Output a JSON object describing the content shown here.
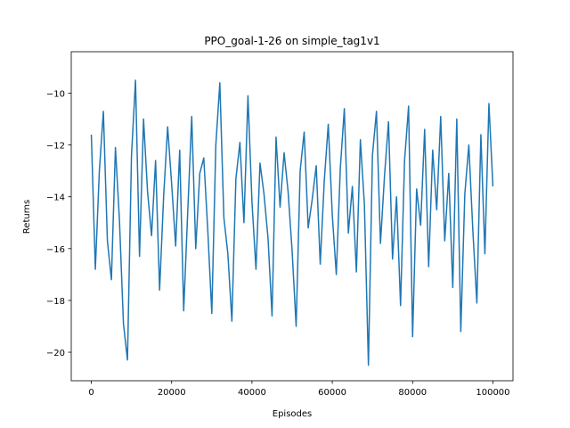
{
  "chart_data": {
    "type": "line",
    "title": "PPO_goal-1-26 on simple_tag1v1",
    "xlabel": "Episodes",
    "ylabel": "Returns",
    "color": "#1f77b4",
    "x": [
      0,
      1000,
      2000,
      3000,
      4000,
      5000,
      6000,
      7000,
      8000,
      9000,
      10000,
      11000,
      12000,
      13000,
      14000,
      15000,
      16000,
      17000,
      18000,
      19000,
      20000,
      21000,
      22000,
      23000,
      24000,
      25000,
      26000,
      27000,
      28000,
      29000,
      30000,
      31000,
      32000,
      33000,
      34000,
      35000,
      36000,
      37000,
      38000,
      39000,
      40000,
      41000,
      42000,
      43000,
      44000,
      45000,
      46000,
      47000,
      48000,
      49000,
      50000,
      51000,
      52000,
      53000,
      54000,
      55000,
      56000,
      57000,
      58000,
      59000,
      60000,
      61000,
      62000,
      63000,
      64000,
      65000,
      66000,
      67000,
      68000,
      69000,
      70000,
      71000,
      72000,
      73000,
      74000,
      75000,
      76000,
      77000,
      78000,
      79000,
      80000,
      81000,
      82000,
      83000,
      84000,
      85000,
      86000,
      87000,
      88000,
      89000,
      90000,
      91000,
      92000,
      93000,
      94000,
      95000,
      96000,
      97000,
      98000,
      99000,
      100000
    ],
    "values": [
      -11.6,
      -16.8,
      -13.0,
      -10.7,
      -15.7,
      -17.2,
      -12.1,
      -14.9,
      -18.9,
      -20.3,
      -12.4,
      -9.5,
      -16.3,
      -11.0,
      -13.8,
      -15.5,
      -12.6,
      -17.6,
      -14.0,
      -11.3,
      -13.5,
      -15.9,
      -12.2,
      -18.4,
      -14.6,
      -10.9,
      -16.0,
      -13.1,
      -12.5,
      -15.3,
      -18.5,
      -12.0,
      -9.6,
      -14.8,
      -16.2,
      -18.8,
      -13.3,
      -11.9,
      -15.0,
      -10.1,
      -14.2,
      -16.8,
      -12.7,
      -13.9,
      -15.6,
      -18.6,
      -11.7,
      -14.4,
      -12.3,
      -13.8,
      -16.1,
      -19.0,
      -13.0,
      -11.5,
      -15.2,
      -14.1,
      -12.8,
      -16.6,
      -13.4,
      -11.2,
      -14.7,
      -17.0,
      -12.9,
      -10.6,
      -15.4,
      -13.6,
      -16.9,
      -11.8,
      -14.3,
      -20.5,
      -12.4,
      -10.7,
      -15.8,
      -13.2,
      -11.1,
      -16.4,
      -14.0,
      -18.2,
      -12.6,
      -10.5,
      -19.4,
      -13.7,
      -15.1,
      -11.4,
      -16.7,
      -12.2,
      -14.5,
      -10.9,
      -15.7,
      -13.1,
      -17.5,
      -11.0,
      -19.2,
      -13.9,
      -12.0,
      -15.3,
      -18.1,
      -11.6,
      -16.2,
      -10.4,
      -13.6
    ],
    "xlim": [
      -5000,
      105000
    ],
    "ylim": [
      -21.1,
      -8.4
    ],
    "xticks": [
      0,
      20000,
      40000,
      60000,
      80000,
      100000
    ],
    "yticks": [
      {
        "value": -20,
        "label": "−20"
      },
      {
        "value": -18,
        "label": "−18"
      },
      {
        "value": -16,
        "label": "−16"
      },
      {
        "value": -14,
        "label": "−14"
      },
      {
        "value": -12,
        "label": "−12"
      },
      {
        "value": -10,
        "label": "−10"
      }
    ]
  }
}
